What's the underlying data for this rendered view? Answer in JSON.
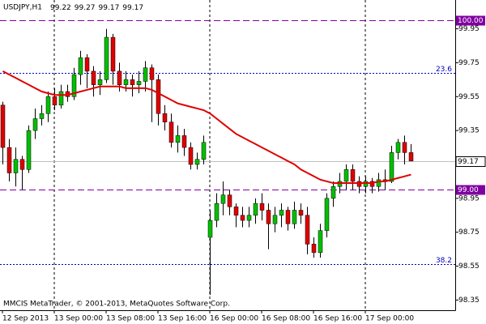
{
  "chart_data": {
    "type": "candlestick",
    "title": "USDJPY,H1",
    "footer": "MMCIS MetaTrader, © 2001-2013, MetaQuotes Software Corp.",
    "categories": [
      "12 Sep 2013",
      null,
      null,
      null,
      null,
      null,
      null,
      null,
      "13 Sep 00:00",
      null,
      null,
      null,
      null,
      null,
      null,
      null,
      "13 Sep 08:00",
      null,
      null,
      null,
      null,
      null,
      null,
      null,
      "13 Sep 16:00",
      null,
      null,
      null,
      null,
      null,
      null,
      null,
      "16 Sep 00:00",
      null,
      null,
      null,
      null,
      null,
      null,
      null,
      "16 Sep 08:00",
      null,
      null,
      null,
      null,
      null,
      null,
      null,
      "16 Sep 16:00",
      null,
      null,
      null,
      null,
      null,
      null,
      null,
      "17 Sep 00:00",
      null,
      null,
      null,
      null,
      null,
      null,
      null
    ],
    "open": [
      99.5,
      99.25,
      99.1,
      99.18,
      99.12,
      99.35,
      99.42,
      99.45,
      99.55,
      99.5,
      99.58,
      99.55,
      99.68,
      99.78,
      99.7,
      99.62,
      99.65,
      99.9,
      99.7,
      99.62,
      99.65,
      99.62,
      99.64,
      99.72,
      99.65,
      99.45,
      99.4,
      99.28,
      99.32,
      99.25,
      99.15,
      99.18,
      98.72,
      98.82,
      98.92,
      98.97,
      98.9,
      98.85,
      98.82,
      98.85,
      98.92,
      98.88,
      98.8,
      98.85,
      98.88,
      98.8,
      98.88,
      98.85,
      98.68,
      98.63,
      98.76,
      98.95,
      99.02,
      99.05,
      99.12,
      99.05,
      99.02,
      99.05,
      99.02,
      99.06,
      99.05,
      99.22,
      99.28,
      99.22
    ],
    "high": [
      99.52,
      99.3,
      99.25,
      99.2,
      99.38,
      99.48,
      99.5,
      99.58,
      99.6,
      99.62,
      99.62,
      99.72,
      99.82,
      99.8,
      99.73,
      99.7,
      99.95,
      99.92,
      99.75,
      99.7,
      99.68,
      99.7,
      99.76,
      99.74,
      99.68,
      99.5,
      99.45,
      99.38,
      99.36,
      99.28,
      99.22,
      99.32,
      98.88,
      98.98,
      99.05,
      99.0,
      98.92,
      98.9,
      98.9,
      98.95,
      98.98,
      98.92,
      98.9,
      98.92,
      98.9,
      98.93,
      98.92,
      98.9,
      98.72,
      98.8,
      98.98,
      99.05,
      99.1,
      99.15,
      99.15,
      99.08,
      99.08,
      99.07,
      99.1,
      99.12,
      99.26,
      99.3,
      99.32,
      99.27
    ],
    "low": [
      99.15,
      99.05,
      99.02,
      99.0,
      99.1,
      99.3,
      99.38,
      99.4,
      99.47,
      99.48,
      99.52,
      99.53,
      99.62,
      99.6,
      99.55,
      99.56,
      99.63,
      99.62,
      99.58,
      99.58,
      99.55,
      99.57,
      99.58,
      99.4,
      99.38,
      99.35,
      99.25,
      99.22,
      99.2,
      99.12,
      99.12,
      99.15,
      98.38,
      98.78,
      98.85,
      98.85,
      98.78,
      98.78,
      98.78,
      98.8,
      98.82,
      98.65,
      98.75,
      98.78,
      98.76,
      98.77,
      98.8,
      98.62,
      98.6,
      98.6,
      98.72,
      98.9,
      98.98,
      99.0,
      99.0,
      98.98,
      98.98,
      98.98,
      98.99,
      99.0,
      99.04,
      99.18,
      99.15,
      99.17
    ],
    "close": [
      99.25,
      99.1,
      99.18,
      99.12,
      99.35,
      99.42,
      99.45,
      99.55,
      99.5,
      99.58,
      99.55,
      99.68,
      99.78,
      99.7,
      99.62,
      99.65,
      99.9,
      99.7,
      99.62,
      99.65,
      99.62,
      99.64,
      99.72,
      99.65,
      99.45,
      99.4,
      99.28,
      99.32,
      99.25,
      99.15,
      99.18,
      99.28,
      98.82,
      98.92,
      98.97,
      98.9,
      98.85,
      98.82,
      98.85,
      98.92,
      98.88,
      98.8,
      98.85,
      98.88,
      98.8,
      98.88,
      98.85,
      98.68,
      98.63,
      98.76,
      98.95,
      99.02,
      99.05,
      99.12,
      99.05,
      99.02,
      99.05,
      99.02,
      99.06,
      99.05,
      99.22,
      99.28,
      99.22,
      99.17
    ],
    "up_color": "#00c000",
    "down_color": "#e00000",
    "ma": {
      "color": "#e00000",
      "values": [
        99.7,
        99.68,
        99.66,
        99.64,
        99.62,
        99.6,
        99.58,
        99.57,
        99.56,
        99.56,
        99.56,
        99.57,
        99.58,
        99.59,
        99.6,
        99.61,
        99.61,
        99.61,
        99.61,
        99.6,
        99.6,
        99.6,
        99.6,
        99.59,
        99.57,
        99.55,
        99.53,
        99.51,
        99.5,
        99.49,
        99.48,
        99.47,
        99.45,
        99.42,
        99.39,
        99.36,
        99.33,
        99.31,
        99.29,
        99.27,
        99.25,
        99.23,
        99.21,
        99.19,
        99.17,
        99.15,
        99.12,
        99.1,
        99.08,
        99.06,
        99.05,
        99.04,
        99.04,
        99.04,
        99.04,
        99.04,
        99.04,
        99.04,
        99.05,
        99.05,
        99.06,
        99.07,
        99.08,
        99.09
      ]
    },
    "levels": [
      {
        "value": 100.0,
        "label": "100.00",
        "color": "#8000a0"
      },
      {
        "value": 99.69,
        "name": "23.6",
        "color": "#0000c0"
      },
      {
        "value": 99.0,
        "label": "99.00",
        "color": "#8000a0"
      },
      {
        "value": 98.56,
        "name": "38.2",
        "color": "#0000c0"
      }
    ],
    "last_price": 99.17,
    "ylim": [
      98.29,
      100.12
    ],
    "yticks": [
      99.95,
      99.75,
      99.55,
      99.35,
      99.15,
      98.95,
      98.75,
      98.55,
      98.35
    ]
  }
}
